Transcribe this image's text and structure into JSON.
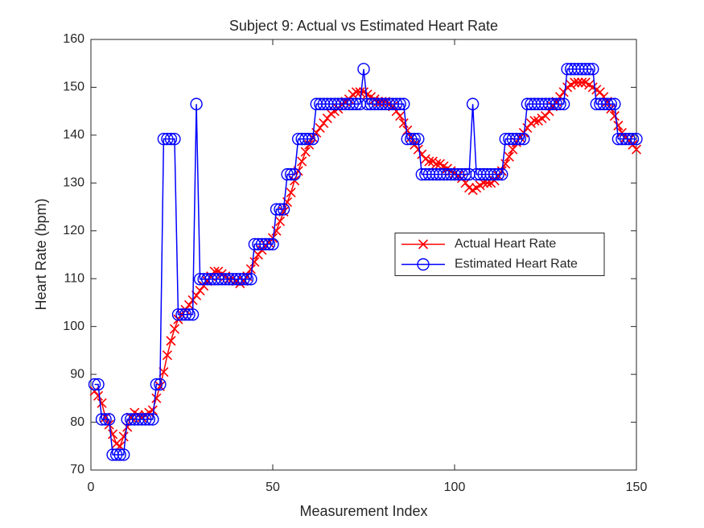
{
  "chart_data": {
    "type": "line",
    "title": "Subject 9: Actual vs Estimated Heart Rate",
    "xlabel": "Measurement Index",
    "ylabel": "Heart Rate (bpm)",
    "x": [
      1,
      2,
      3,
      4,
      5,
      6,
      7,
      8,
      9,
      10,
      11,
      12,
      13,
      14,
      15,
      16,
      17,
      18,
      19,
      20,
      21,
      22,
      23,
      24,
      25,
      26,
      27,
      28,
      29,
      30,
      31,
      32,
      33,
      34,
      35,
      36,
      37,
      38,
      39,
      40,
      41,
      42,
      43,
      44,
      45,
      46,
      47,
      48,
      49,
      50,
      51,
      52,
      53,
      54,
      55,
      56,
      57,
      58,
      59,
      60,
      61,
      62,
      63,
      64,
      65,
      66,
      67,
      68,
      69,
      70,
      71,
      72,
      73,
      74,
      75,
      76,
      77,
      78,
      79,
      80,
      81,
      82,
      83,
      84,
      85,
      86,
      87,
      88,
      89,
      90,
      91,
      92,
      93,
      94,
      95,
      96,
      97,
      98,
      99,
      100,
      101,
      102,
      103,
      104,
      105,
      106,
      107,
      108,
      109,
      110,
      111,
      112,
      113,
      114,
      115,
      116,
      117,
      118,
      119,
      120,
      121,
      122,
      123,
      124,
      125,
      126,
      127,
      128,
      129,
      130,
      131,
      132,
      133,
      134,
      135,
      136,
      137,
      138,
      139,
      140,
      141,
      142,
      143,
      144,
      145,
      146,
      147,
      148,
      149,
      150
    ],
    "series": [
      {
        "name": "Actual Heart Rate",
        "color": "#ff0000",
        "marker": "x",
        "values": [
          86.5,
          85.5,
          84,
          81,
          79.5,
          77.5,
          75.5,
          75,
          77,
          79,
          81,
          82,
          81.5,
          81,
          81.5,
          82,
          82.5,
          85,
          87.5,
          90.5,
          94,
          97,
          99.5,
          101.5,
          102.5,
          103.5,
          104.5,
          105.5,
          106.5,
          107.5,
          108.5,
          109.5,
          110.5,
          111.5,
          111.5,
          111,
          110.5,
          110,
          110,
          109.5,
          109,
          109.5,
          110.5,
          112,
          113.5,
          115,
          116,
          117,
          117.5,
          118.5,
          120,
          122,
          124,
          126,
          128,
          130.5,
          132.5,
          134.5,
          136.5,
          138,
          139.5,
          140.5,
          141.5,
          142.5,
          143.5,
          144.5,
          145,
          145.5,
          146.5,
          147,
          147.5,
          148.5,
          149,
          149,
          149,
          148.5,
          148,
          147.5,
          147,
          147,
          147,
          146.5,
          146,
          145,
          144,
          142.5,
          141,
          139.5,
          138,
          137,
          136,
          135,
          134.5,
          134.5,
          134,
          134,
          133.5,
          133,
          132.5,
          132,
          131.5,
          131,
          130,
          129,
          128.5,
          129,
          129.5,
          130,
          130,
          130,
          130.5,
          131.5,
          132.5,
          134,
          135.5,
          137,
          138.5,
          139.5,
          140.5,
          141.5,
          142.5,
          143,
          143,
          143.5,
          144,
          145,
          146,
          147,
          148,
          149,
          150,
          150.5,
          151,
          151,
          151,
          151,
          150.5,
          150,
          149.5,
          149,
          148,
          147,
          145.5,
          144,
          142,
          140.5,
          139.5,
          139,
          138,
          137
        ]
      },
      {
        "name": "Estimated Heart Rate",
        "color": "#0000ff",
        "marker": "o",
        "values": [
          87.9,
          87.9,
          80.6,
          80.6,
          80.6,
          73.2,
          73.2,
          73.2,
          73.2,
          80.6,
          80.6,
          80.6,
          80.6,
          80.6,
          80.6,
          80.6,
          80.6,
          87.9,
          87.9,
          139.2,
          139.2,
          139.2,
          139.2,
          102.5,
          102.5,
          102.5,
          102.5,
          102.5,
          146.5,
          109.9,
          109.9,
          109.9,
          109.9,
          109.9,
          109.9,
          109.9,
          109.9,
          109.9,
          109.9,
          109.9,
          109.9,
          109.9,
          109.9,
          109.9,
          117.2,
          117.2,
          117.2,
          117.2,
          117.2,
          117.2,
          124.5,
          124.5,
          124.5,
          131.8,
          131.8,
          131.8,
          139.2,
          139.2,
          139.2,
          139.2,
          139.2,
          146.5,
          146.5,
          146.5,
          146.5,
          146.5,
          146.5,
          146.5,
          146.5,
          146.5,
          146.5,
          146.5,
          146.5,
          146.5,
          153.8,
          146.5,
          146.5,
          146.5,
          146.5,
          146.5,
          146.5,
          146.5,
          146.5,
          146.5,
          146.5,
          146.5,
          139.2,
          139.2,
          139.2,
          139.2,
          131.8,
          131.8,
          131.8,
          131.8,
          131.8,
          131.8,
          131.8,
          131.8,
          131.8,
          131.8,
          131.8,
          131.8,
          131.8,
          131.8,
          146.5,
          131.8,
          131.8,
          131.8,
          131.8,
          131.8,
          131.8,
          131.8,
          131.8,
          139.2,
          139.2,
          139.2,
          139.2,
          139.2,
          139.2,
          146.5,
          146.5,
          146.5,
          146.5,
          146.5,
          146.5,
          146.5,
          146.5,
          146.5,
          146.5,
          146.5,
          153.8,
          153.8,
          153.8,
          153.8,
          153.8,
          153.8,
          153.8,
          153.8,
          146.5,
          146.5,
          146.5,
          146.5,
          146.5,
          146.5,
          139.2,
          139.2,
          139.2,
          139.2,
          139.2,
          139.2
        ]
      }
    ],
    "xlim": [
      0,
      150
    ],
    "xticks": [
      0,
      50,
      100,
      150
    ],
    "ylim": [
      70,
      160
    ],
    "yticks": [
      70,
      80,
      90,
      100,
      110,
      120,
      130,
      140,
      150,
      160
    ],
    "grid": false,
    "legend_location": "east"
  }
}
